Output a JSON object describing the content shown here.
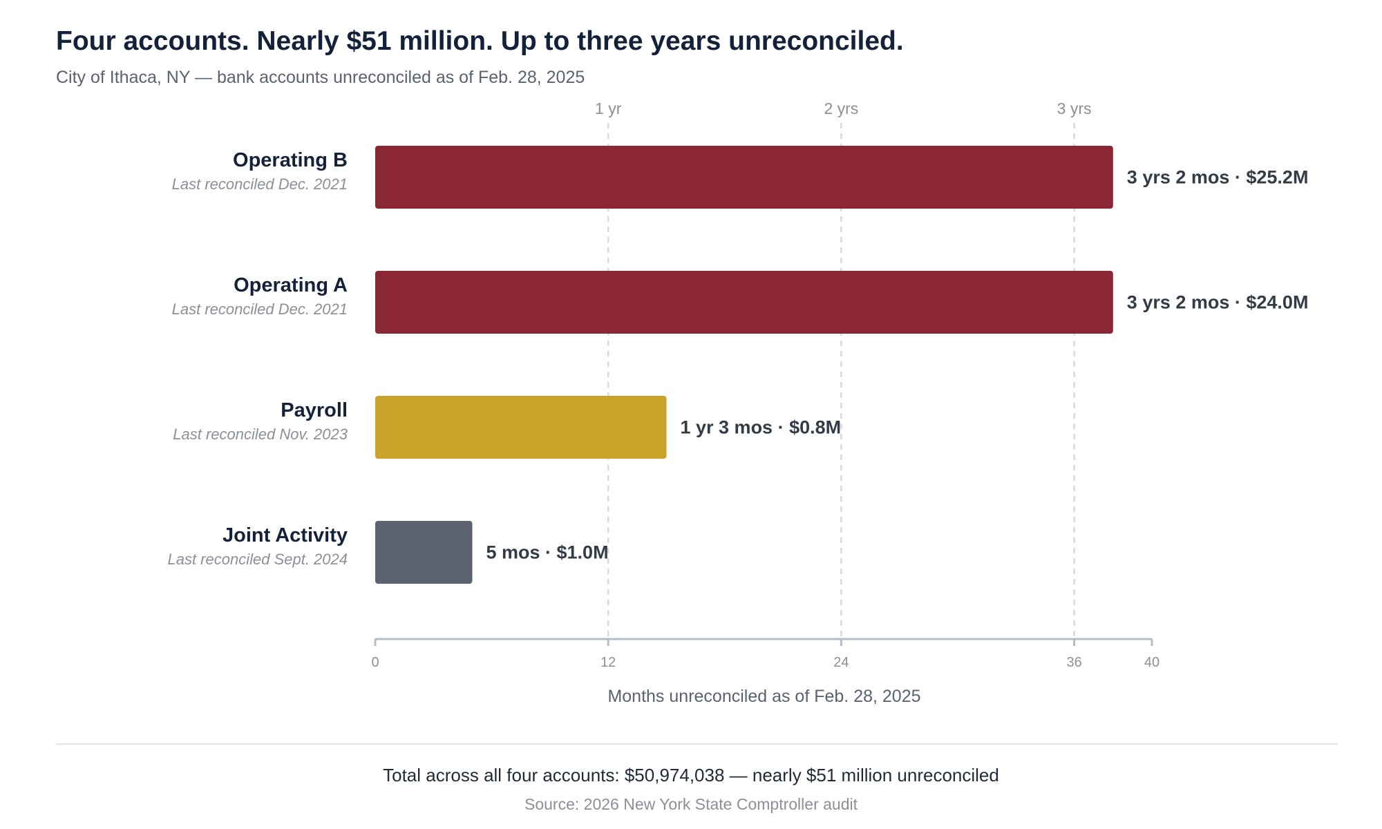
{
  "header": {
    "title": "Four accounts. Nearly $51 million. Up to three years unreconciled.",
    "subtitle": "City of Ithaca, NY — bank accounts unreconciled as of Feb. 28, 2025"
  },
  "chart_data": {
    "type": "bar",
    "orientation": "horizontal",
    "categories": [
      "Operating B",
      "Operating A",
      "Payroll",
      "Joint Activity"
    ],
    "category_sublabels": [
      "Last reconciled Dec. 2021",
      "Last reconciled Dec. 2021",
      "Last reconciled Nov. 2023",
      "Last reconciled Sept. 2024"
    ],
    "values": [
      38,
      38,
      15,
      5
    ],
    "data_labels": [
      "3 yrs 2 mos · $25.2M",
      "3 yrs 2 mos · $24.0M",
      "1 yr 3 mos · $0.8M",
      "5 mos · $1.0M"
    ],
    "bar_colors": [
      "#8b2635",
      "#8b2635",
      "#c9a22a",
      "#5b6370"
    ],
    "xlabel": "Months unreconciled as of Feb. 28, 2025",
    "xlim": [
      0,
      40
    ],
    "x_ticks": [
      0,
      12,
      24,
      36,
      40
    ],
    "top_reference_lines": [
      {
        "value": 12,
        "label": "1 yr"
      },
      {
        "value": 24,
        "label": "2 yrs"
      },
      {
        "value": 36,
        "label": "3 yrs"
      }
    ],
    "grid": "dashed vertical reference lines at 12, 24, 36"
  },
  "footer": {
    "total": "Total across all four accounts: $50,974,038 — nearly $51 million unreconciled",
    "source": "Source: 2026 New York State Comptroller audit"
  },
  "colors": {
    "title": "#14213a",
    "axis": "#b4bcc8",
    "gridline": "#d6d9de",
    "tick_text": "#8a8f98",
    "label_text": "#333b47"
  }
}
